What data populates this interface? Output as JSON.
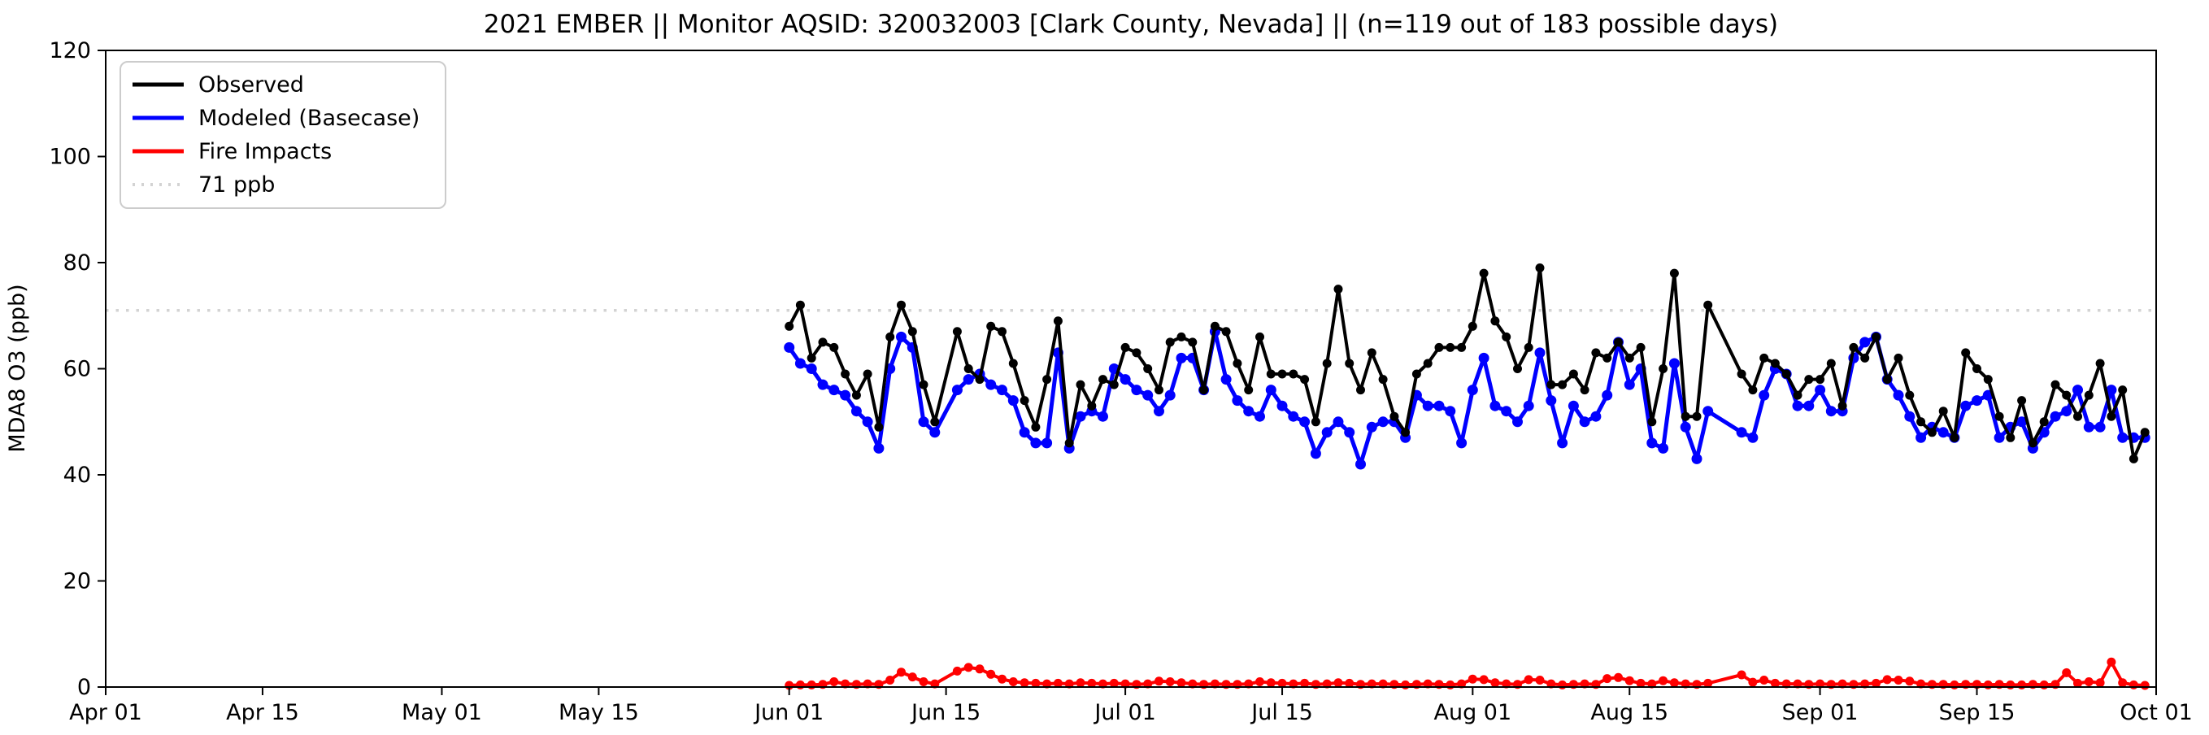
{
  "figure": {
    "background": "#ffffff"
  },
  "chart_data": {
    "type": "line",
    "title": "2021 EMBER || Monitor AQSID: 320032003 [Clark County, Nevada] || (n=119 out of 183 possible days)",
    "ylabel": "MDA8 O3 (ppb)",
    "xlabel": "",
    "ylim": [
      0,
      120
    ],
    "yticks": [
      0,
      20,
      40,
      60,
      80,
      100,
      120
    ],
    "xtick_labels": [
      "Apr 01",
      "Apr 15",
      "May 01",
      "May 15",
      "Jun 01",
      "Jun 15",
      "Jul 01",
      "Jul 15",
      "Aug 01",
      "Aug 15",
      "Sep 01",
      "Sep 15",
      "Oct 01"
    ],
    "xtick_days": [
      0,
      14,
      30,
      44,
      61,
      75,
      91,
      105,
      122,
      136,
      153,
      167,
      183
    ],
    "x_total_days": 183,
    "data_start_day": 61,
    "data_start_date": "Jun 01",
    "data_end_date": "Sep 30",
    "grid": "off",
    "legend_position": "upper-left",
    "threshold": {
      "label": "71 ppb",
      "value": 71,
      "color": "#d3d3d3"
    },
    "series": [
      {
        "name": "Observed",
        "color": "#000000",
        "values": [
          68,
          72,
          62,
          65,
          64,
          59,
          55,
          59,
          49,
          66,
          72,
          67,
          57,
          50,
          null,
          67,
          60,
          58,
          68,
          67,
          61,
          54,
          49,
          58,
          69,
          46,
          57,
          53,
          58,
          57,
          64,
          63,
          60,
          56,
          65,
          66,
          65,
          56,
          68,
          67,
          61,
          56,
          66,
          59,
          59,
          59,
          58,
          50,
          61,
          75,
          61,
          56,
          63,
          58,
          51,
          48,
          59,
          61,
          64,
          64,
          64,
          68,
          78,
          69,
          66,
          60,
          64,
          79,
          57,
          57,
          59,
          56,
          63,
          62,
          65,
          62,
          64,
          50,
          60,
          78,
          51,
          51,
          72,
          null,
          null,
          59,
          56,
          62,
          61,
          59,
          55,
          58,
          58,
          61,
          53,
          64,
          62,
          66,
          58,
          62,
          55,
          50,
          48,
          52,
          47,
          63,
          60,
          58,
          51,
          47,
          54,
          46,
          50,
          57,
          55,
          51,
          55,
          61,
          51,
          56,
          43,
          48
        ]
      },
      {
        "name": "Modeled (Basecase)",
        "color": "#0000ff",
        "values": [
          64,
          61,
          60,
          57,
          56,
          55,
          52,
          50,
          45,
          60,
          66,
          64,
          50,
          48,
          null,
          56,
          58,
          59,
          57,
          56,
          54,
          48,
          46,
          46,
          63,
          45,
          51,
          52,
          51,
          60,
          58,
          56,
          55,
          52,
          55,
          62,
          62,
          56,
          67,
          58,
          54,
          52,
          51,
          56,
          53,
          51,
          50,
          44,
          48,
          50,
          48,
          42,
          49,
          50,
          50,
          47,
          55,
          53,
          53,
          52,
          46,
          56,
          62,
          53,
          52,
          50,
          53,
          63,
          54,
          46,
          53,
          50,
          51,
          55,
          65,
          57,
          60,
          46,
          45,
          61,
          49,
          43,
          52,
          null,
          null,
          48,
          47,
          55,
          60,
          59,
          53,
          53,
          56,
          52,
          52,
          62,
          65,
          66,
          58,
          55,
          51,
          47,
          49,
          48,
          47,
          53,
          54,
          55,
          47,
          49,
          50,
          45,
          48,
          51,
          52,
          56,
          49,
          49,
          56,
          47,
          47,
          47
        ]
      },
      {
        "name": "Fire Impacts",
        "color": "#ff0000",
        "values": [
          0.3,
          0.4,
          0.4,
          0.5,
          1.0,
          0.6,
          0.5,
          0.6,
          0.5,
          1.3,
          2.8,
          1.9,
          1.0,
          0.6,
          null,
          3.0,
          3.7,
          3.4,
          2.4,
          1.5,
          1.0,
          0.8,
          0.7,
          0.6,
          0.7,
          0.6,
          0.8,
          0.7,
          0.6,
          0.7,
          0.6,
          0.5,
          0.6,
          1.1,
          1.0,
          0.8,
          0.6,
          0.5,
          0.6,
          0.5,
          0.5,
          0.6,
          1.0,
          0.8,
          0.7,
          0.6,
          0.7,
          0.5,
          0.6,
          0.8,
          0.7,
          0.5,
          0.6,
          0.6,
          0.5,
          0.4,
          0.5,
          0.6,
          0.5,
          0.4,
          0.6,
          1.5,
          1.4,
          0.8,
          0.6,
          0.5,
          1.4,
          1.3,
          0.6,
          0.4,
          0.5,
          0.6,
          0.5,
          1.6,
          1.8,
          1.2,
          0.7,
          0.6,
          1.2,
          0.8,
          0.6,
          0.5,
          0.7,
          null,
          null,
          2.3,
          0.9,
          1.3,
          0.7,
          0.6,
          0.6,
          0.5,
          0.6,
          0.5,
          0.6,
          0.5,
          0.6,
          0.7,
          1.4,
          1.3,
          1.1,
          0.6,
          0.5,
          0.5,
          0.4,
          0.5,
          0.5,
          0.4,
          0.5,
          0.4,
          0.4,
          0.5,
          0.4,
          0.5,
          2.7,
          0.7,
          1.0,
          0.8,
          4.7,
          0.8,
          0.4,
          0.3
        ]
      }
    ]
  }
}
